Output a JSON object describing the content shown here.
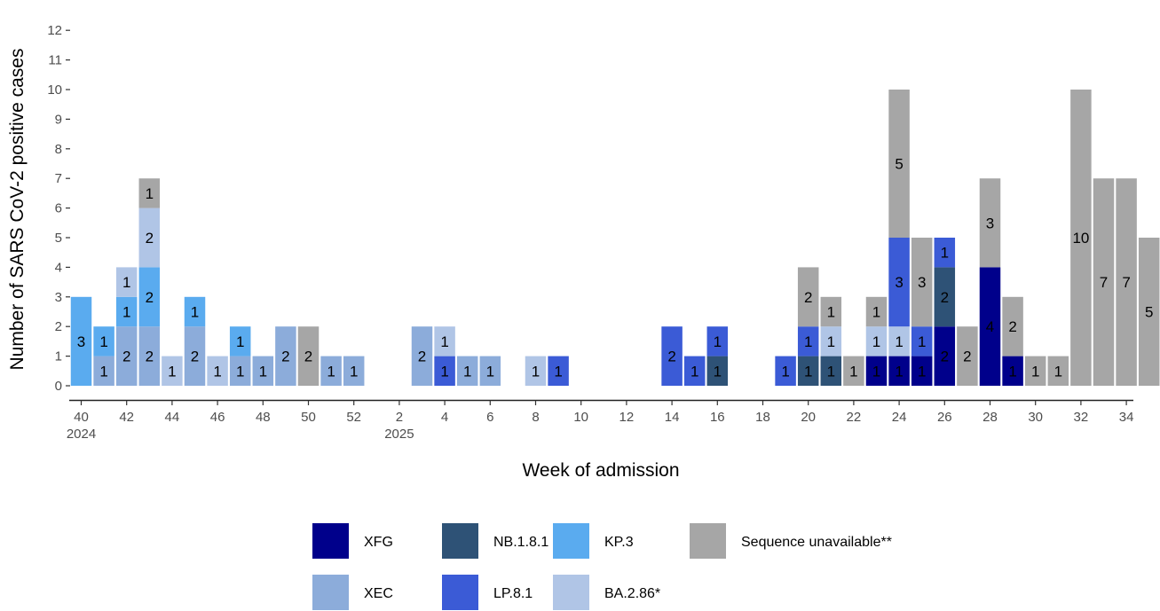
{
  "chart_data": {
    "type": "bar",
    "stacked": true,
    "xlabel": "Week of admission",
    "ylabel": "Number of SARS CoV-2 positive cases",
    "ylim": [
      0,
      12
    ],
    "yticks": [
      "0",
      "1",
      "2",
      "3",
      "4",
      "5",
      "6",
      "7",
      "8",
      "9",
      "10",
      "11",
      "12"
    ],
    "xticks": [
      {
        "week": 40,
        "label": "40",
        "sublabel": "2024"
      },
      {
        "week": 42,
        "label": "42"
      },
      {
        "week": 44,
        "label": "44"
      },
      {
        "week": 46,
        "label": "46"
      },
      {
        "week": 48,
        "label": "48"
      },
      {
        "week": 50,
        "label": "50"
      },
      {
        "week": 52,
        "label": "52"
      },
      {
        "week": 54,
        "label": "2",
        "sublabel": "2025"
      },
      {
        "week": 56,
        "label": "4"
      },
      {
        "week": 58,
        "label": "6"
      },
      {
        "week": 60,
        "label": "8"
      },
      {
        "week": 62,
        "label": "10"
      },
      {
        "week": 64,
        "label": "12"
      },
      {
        "week": 66,
        "label": "14"
      },
      {
        "week": 68,
        "label": "16"
      },
      {
        "week": 70,
        "label": "18"
      },
      {
        "week": 72,
        "label": "20"
      },
      {
        "week": 74,
        "label": "22"
      },
      {
        "week": 76,
        "label": "24"
      },
      {
        "week": 78,
        "label": "26"
      },
      {
        "week": 80,
        "label": "28"
      },
      {
        "week": 82,
        "label": "30"
      },
      {
        "week": 84,
        "label": "32"
      },
      {
        "week": 86,
        "label": "34"
      }
    ],
    "grid": false,
    "legend_position": "bottom",
    "series": [
      {
        "key": "xfg",
        "name": "XFG",
        "color": "#00008b"
      },
      {
        "key": "nb181",
        "name": "NB.1.8.1",
        "color": "#2e5276"
      },
      {
        "key": "kp3",
        "name": "KP.3",
        "color": "#5aabef"
      },
      {
        "key": "unavail",
        "name": "Sequence unavailable**",
        "color": "#a6a6a6"
      },
      {
        "key": "xec",
        "name": "XEC",
        "color": "#8cacda"
      },
      {
        "key": "lp81",
        "name": "LP.8.1",
        "color": "#3b5bd6"
      },
      {
        "key": "ba286",
        "name": "BA.2.86*",
        "color": "#b0c5e6"
      }
    ],
    "bars": [
      {
        "week": 40,
        "segments": [
          {
            "s": "kp3",
            "v": 3
          }
        ]
      },
      {
        "week": 41,
        "segments": [
          {
            "s": "xec",
            "v": 1
          },
          {
            "s": "kp3",
            "v": 1
          }
        ]
      },
      {
        "week": 42,
        "segments": [
          {
            "s": "xec",
            "v": 2
          },
          {
            "s": "kp3",
            "v": 1
          },
          {
            "s": "ba286",
            "v": 1
          }
        ]
      },
      {
        "week": 43,
        "segments": [
          {
            "s": "xec",
            "v": 2
          },
          {
            "s": "kp3",
            "v": 2
          },
          {
            "s": "ba286",
            "v": 2
          },
          {
            "s": "unavail",
            "v": 1
          }
        ]
      },
      {
        "week": 44,
        "segments": [
          {
            "s": "ba286",
            "v": 1
          }
        ]
      },
      {
        "week": 45,
        "segments": [
          {
            "s": "xec",
            "v": 2
          },
          {
            "s": "kp3",
            "v": 1
          }
        ]
      },
      {
        "week": 46,
        "segments": [
          {
            "s": "ba286",
            "v": 1
          }
        ]
      },
      {
        "week": 47,
        "segments": [
          {
            "s": "xec",
            "v": 1
          },
          {
            "s": "kp3",
            "v": 1
          }
        ]
      },
      {
        "week": 48,
        "segments": [
          {
            "s": "xec",
            "v": 1
          }
        ]
      },
      {
        "week": 49,
        "segments": [
          {
            "s": "xec",
            "v": 2
          }
        ]
      },
      {
        "week": 50,
        "segments": [
          {
            "s": "unavail",
            "v": 2
          }
        ]
      },
      {
        "week": 51,
        "segments": [
          {
            "s": "xec",
            "v": 1
          }
        ]
      },
      {
        "week": 52,
        "segments": [
          {
            "s": "xec",
            "v": 1
          }
        ]
      },
      {
        "week": 55,
        "segments": [
          {
            "s": "xec",
            "v": 2
          }
        ]
      },
      {
        "week": 56,
        "segments": [
          {
            "s": "lp81",
            "v": 1
          },
          {
            "s": "ba286",
            "v": 1
          }
        ]
      },
      {
        "week": 57,
        "segments": [
          {
            "s": "xec",
            "v": 1
          }
        ]
      },
      {
        "week": 58,
        "segments": [
          {
            "s": "xec",
            "v": 1
          }
        ]
      },
      {
        "week": 60,
        "segments": [
          {
            "s": "ba286",
            "v": 1
          }
        ]
      },
      {
        "week": 61,
        "segments": [
          {
            "s": "lp81",
            "v": 1
          }
        ]
      },
      {
        "week": 66,
        "segments": [
          {
            "s": "lp81",
            "v": 2
          }
        ]
      },
      {
        "week": 67,
        "segments": [
          {
            "s": "lp81",
            "v": 1
          }
        ]
      },
      {
        "week": 68,
        "segments": [
          {
            "s": "nb181",
            "v": 1
          },
          {
            "s": "lp81",
            "v": 1
          }
        ]
      },
      {
        "week": 71,
        "segments": [
          {
            "s": "lp81",
            "v": 1
          }
        ]
      },
      {
        "week": 72,
        "segments": [
          {
            "s": "nb181",
            "v": 1
          },
          {
            "s": "lp81",
            "v": 1
          },
          {
            "s": "unavail",
            "v": 2
          }
        ]
      },
      {
        "week": 73,
        "segments": [
          {
            "s": "nb181",
            "v": 1
          },
          {
            "s": "ba286",
            "v": 1
          },
          {
            "s": "unavail",
            "v": 1
          }
        ]
      },
      {
        "week": 74,
        "segments": [
          {
            "s": "unavail",
            "v": 1
          }
        ]
      },
      {
        "week": 75,
        "segments": [
          {
            "s": "xfg",
            "v": 1
          },
          {
            "s": "ba286",
            "v": 1
          },
          {
            "s": "unavail",
            "v": 1
          }
        ]
      },
      {
        "week": 76,
        "segments": [
          {
            "s": "xfg",
            "v": 1
          },
          {
            "s": "ba286",
            "v": 1
          },
          {
            "s": "lp81",
            "v": 3
          },
          {
            "s": "unavail",
            "v": 5
          }
        ]
      },
      {
        "week": 77,
        "segments": [
          {
            "s": "xfg",
            "v": 1
          },
          {
            "s": "lp81",
            "v": 1
          },
          {
            "s": "unavail",
            "v": 3
          }
        ]
      },
      {
        "week": 78,
        "segments": [
          {
            "s": "xfg",
            "v": 2
          },
          {
            "s": "nb181",
            "v": 2
          },
          {
            "s": "lp81",
            "v": 1
          }
        ]
      },
      {
        "week": 79,
        "segments": [
          {
            "s": "unavail",
            "v": 2
          }
        ]
      },
      {
        "week": 80,
        "segments": [
          {
            "s": "xfg",
            "v": 4
          },
          {
            "s": "unavail",
            "v": 3
          }
        ]
      },
      {
        "week": 81,
        "segments": [
          {
            "s": "xfg",
            "v": 1
          },
          {
            "s": "unavail",
            "v": 2
          }
        ]
      },
      {
        "week": 82,
        "segments": [
          {
            "s": "unavail",
            "v": 1
          }
        ]
      },
      {
        "week": 83,
        "segments": [
          {
            "s": "unavail",
            "v": 1
          }
        ]
      },
      {
        "week": 84,
        "segments": [
          {
            "s": "unavail",
            "v": 10
          }
        ]
      },
      {
        "week": 85,
        "segments": [
          {
            "s": "unavail",
            "v": 7
          }
        ]
      },
      {
        "week": 86,
        "segments": [
          {
            "s": "unavail",
            "v": 7
          }
        ]
      },
      {
        "week": 87,
        "segments": [
          {
            "s": "unavail",
            "v": 5
          }
        ]
      }
    ]
  }
}
